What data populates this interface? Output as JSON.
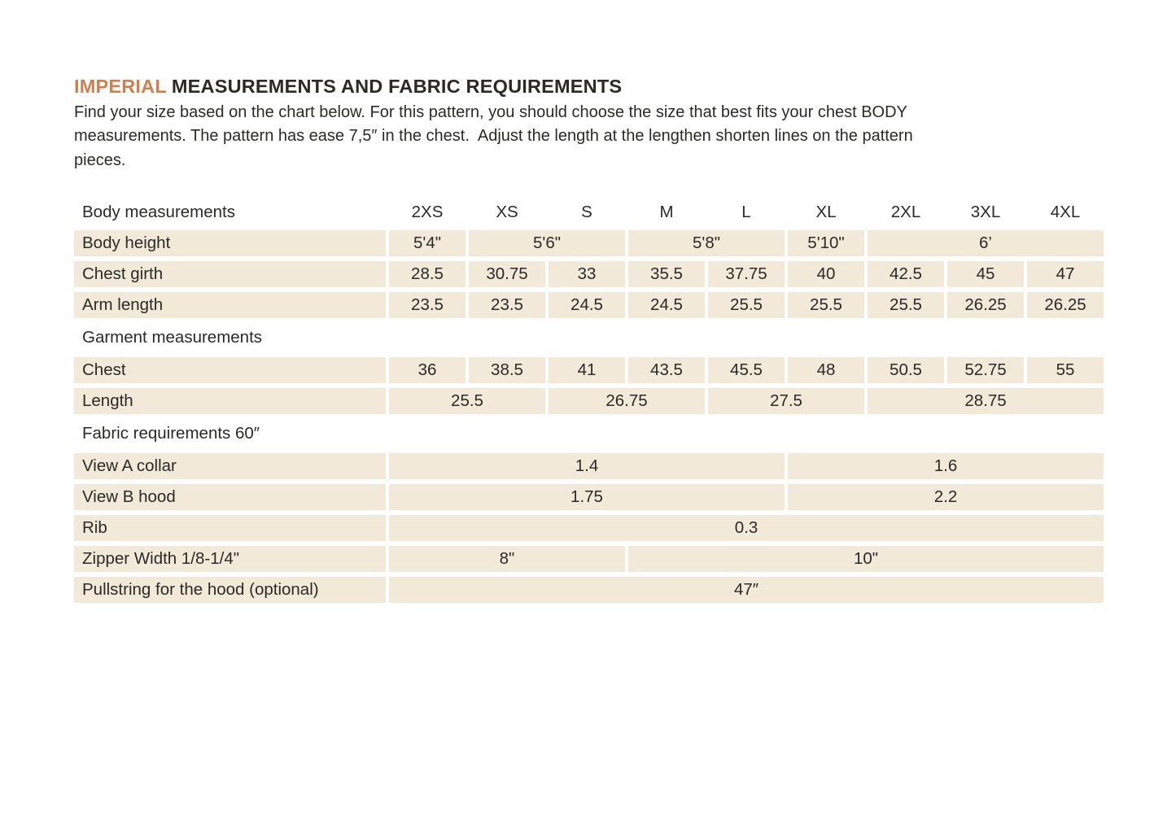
{
  "page": {
    "title": {
      "highlight": "IMPERIAL",
      "rest": "MEASUREMENTS AND FABRIC REQUIREMENTS"
    },
    "intro_lines": [
      "Find your size based on the chart below. For this pattern, you should choose the size that best fits your chest BODY",
      "measurements. The pattern has ease 7,5″ in the chest.  Adjust the length at the lengthen shorten lines on the pattern",
      "pieces."
    ]
  },
  "colors": {
    "accent_orange": "#d0804e",
    "cell_beige": "#f2e9d8",
    "text_dark": "#2b2a28",
    "page_background": "#ffffff"
  },
  "table": {
    "header": {
      "label": "Body measurements",
      "sizes": [
        "2XS",
        "XS",
        "S",
        "M",
        "L",
        "XL",
        "2XL",
        "3XL",
        "4XL"
      ]
    },
    "rows": [
      {
        "type": "data",
        "label": "Body height",
        "cells": [
          {
            "value": "5'4\"",
            "span": 1
          },
          {
            "value": "5'6\"",
            "span": 2
          },
          {
            "value": "5'8\"",
            "span": 2
          },
          {
            "value": "5'10\"",
            "span": 1
          },
          {
            "value": "6’",
            "span": 3
          }
        ]
      },
      {
        "type": "data",
        "label": "Chest girth",
        "cells": [
          {
            "value": "28.5",
            "span": 1
          },
          {
            "value": "30.75",
            "span": 1
          },
          {
            "value": "33",
            "span": 1
          },
          {
            "value": "35.5",
            "span": 1
          },
          {
            "value": "37.75",
            "span": 1
          },
          {
            "value": "40",
            "span": 1
          },
          {
            "value": "42.5",
            "span": 1
          },
          {
            "value": "45",
            "span": 1
          },
          {
            "value": "47",
            "span": 1
          }
        ]
      },
      {
        "type": "data",
        "label": "Arm length",
        "cells": [
          {
            "value": "23.5",
            "span": 1
          },
          {
            "value": "23.5",
            "span": 1
          },
          {
            "value": "24.5",
            "span": 1
          },
          {
            "value": "24.5",
            "span": 1
          },
          {
            "value": "25.5",
            "span": 1
          },
          {
            "value": "25.5",
            "span": 1
          },
          {
            "value": "25.5",
            "span": 1
          },
          {
            "value": "26.25",
            "span": 1
          },
          {
            "value": "26.25",
            "span": 1
          }
        ]
      },
      {
        "type": "section",
        "label": "Garment measurements"
      },
      {
        "type": "data",
        "label": "Chest",
        "cells": [
          {
            "value": "36",
            "span": 1
          },
          {
            "value": "38.5",
            "span": 1
          },
          {
            "value": "41",
            "span": 1
          },
          {
            "value": "43.5",
            "span": 1
          },
          {
            "value": "45.5",
            "span": 1
          },
          {
            "value": "48",
            "span": 1
          },
          {
            "value": "50.5",
            "span": 1
          },
          {
            "value": "52.75",
            "span": 1
          },
          {
            "value": "55",
            "span": 1
          }
        ]
      },
      {
        "type": "data",
        "label": "Length",
        "cells": [
          {
            "value": "25.5",
            "span": 2
          },
          {
            "value": "26.75",
            "span": 2
          },
          {
            "value": "27.5",
            "span": 2
          },
          {
            "value": "28.75",
            "span": 3
          }
        ]
      },
      {
        "type": "section",
        "label": "Fabric requirements 60″"
      },
      {
        "type": "data",
        "label": "View A collar",
        "cells": [
          {
            "value": "1.4",
            "span": 5
          },
          {
            "value": "1.6",
            "span": 4
          }
        ]
      },
      {
        "type": "data",
        "label": "View B hood",
        "cells": [
          {
            "value": "1.75",
            "span": 5
          },
          {
            "value": "2.2",
            "span": 4
          }
        ]
      },
      {
        "type": "data",
        "label": "Rib",
        "cells": [
          {
            "value": "0.3",
            "span": 9
          }
        ]
      },
      {
        "type": "data",
        "label": "Zipper Width 1/8-1/4\"",
        "cells": [
          {
            "value": "8\"",
            "span": 3
          },
          {
            "value": "10\"",
            "span": 6
          }
        ]
      },
      {
        "type": "data",
        "label": "Pullstring for the hood (optional)",
        "cells": [
          {
            "value": "47″",
            "span": 9
          }
        ]
      }
    ]
  }
}
